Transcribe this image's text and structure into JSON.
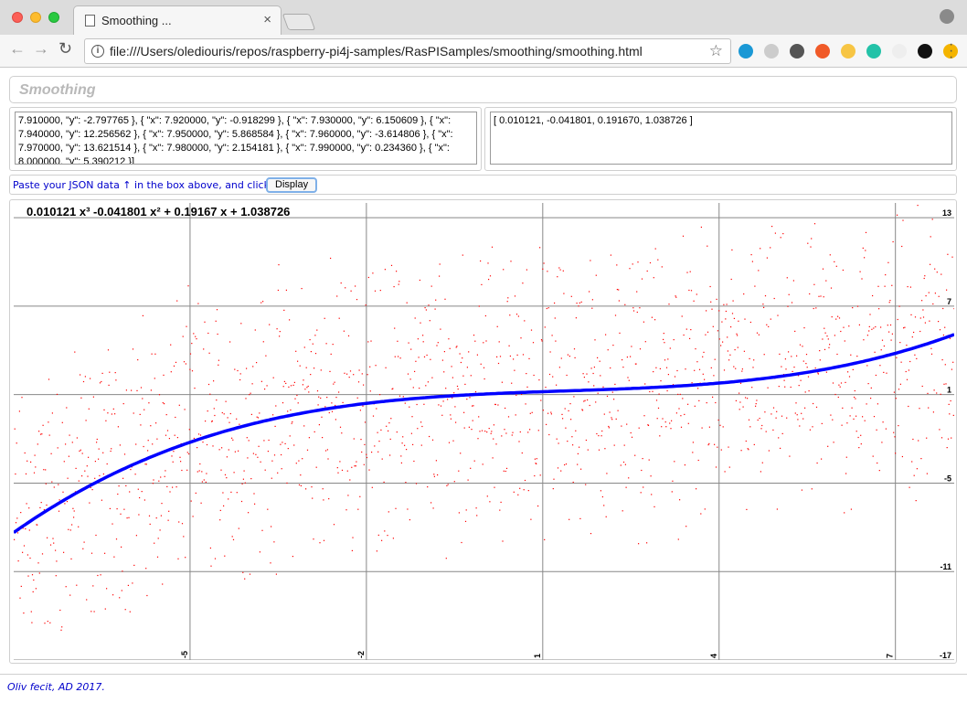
{
  "browser": {
    "tab_title": "Smoothing ...",
    "tab_close": "×",
    "url": "file:///Users/olediouris/repos/raspberry-pi4j-samples/RasPISamples/smoothing/smoothing.html",
    "info_glyph": "i",
    "star_glyph": "☆",
    "back_glyph": "←",
    "forward_glyph": "→",
    "reload_glyph": "↻",
    "extension_colors": [
      "#1a98d5",
      "#cccccc",
      "#555555",
      "#f05a28",
      "#f7c544",
      "#23c2a8",
      "#eeeeee",
      "#111111",
      "#f4b400"
    ]
  },
  "app": {
    "title": "Smoothing",
    "json_input": "7.910000, \"y\": -2.797765 }, { \"x\": 7.920000, \"y\": -0.918299 }, { \"x\": 7.930000, \"y\": 6.150609 }, { \"x\": 7.940000, \"y\": 12.256562 }, { \"x\": 7.950000, \"y\": 5.868584 }, { \"x\": 7.960000, \"y\": -3.614806 }, { \"x\": 7.970000, \"y\": 13.621514 }, { \"x\": 7.980000, \"y\": 2.154181 }, { \"x\": 7.990000, \"y\": 0.234360 }, { \"x\": 8.000000, \"y\": 5.390212 }]",
    "coeffs_output": "[ 0.010121, -0.041801, 0.191670, 1.038726 ]",
    "hint": "Paste your JSON data ↑ in the box above, and click",
    "display_button": "Display",
    "footer": "Oliv fecit, AD 2017."
  },
  "chart_data": {
    "type": "scatter",
    "title": "0.010121 x³ -0.041801 x² + 0.19167 x + 1.038726",
    "xlim": [
      -8,
      8
    ],
    "ylim": [
      -17,
      14
    ],
    "x_ticks": [
      -5,
      -2,
      1,
      4,
      7
    ],
    "y_ticks": [
      13,
      7,
      1,
      -5,
      -11,
      -17
    ],
    "grid": true,
    "scatter_color": "#ff0000",
    "curve_color": "#0000ff",
    "coefficients": [
      0.010121,
      -0.041801,
      0.19167,
      1.038726
    ],
    "scatter_noise_amplitude": 7
  }
}
